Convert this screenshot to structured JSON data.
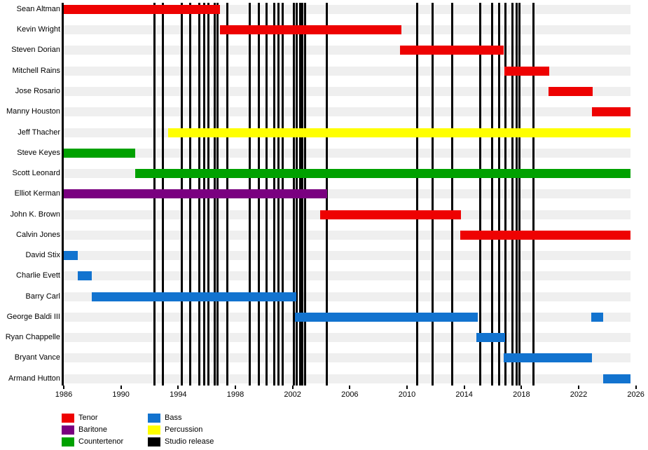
{
  "chart_data": {
    "type": "timeline",
    "x_axis": {
      "tick_years": [
        1986,
        1990,
        1994,
        1998,
        2002,
        2006,
        2010,
        2014,
        2018,
        2022,
        2026
      ],
      "domain": [
        1986,
        2025.62
      ],
      "grid": false
    },
    "roles": {
      "tenor": {
        "label": "Tenor",
        "color": "#ee0202"
      },
      "baritone": {
        "label": "Baritone",
        "color": "#7a0080"
      },
      "countertenor": {
        "label": "Countertenor",
        "color": "#00a100"
      },
      "bass": {
        "label": "Bass",
        "color": "#1273cf"
      },
      "percussion": {
        "label": "Percussion",
        "color": "#ffff00"
      },
      "studio": {
        "label": "Studio release",
        "color": "#000000"
      }
    },
    "legend_order": [
      "tenor",
      "baritone",
      "countertenor",
      "bass",
      "percussion",
      "studio"
    ],
    "legend_position": "bottom-left",
    "members": [
      {
        "name": "Sean Altman",
        "role": "tenor",
        "segments": [
          [
            1986.0,
            1996.92
          ]
        ]
      },
      {
        "name": "Kevin Wright",
        "role": "tenor",
        "segments": [
          [
            1996.92,
            2009.6
          ]
        ]
      },
      {
        "name": "Steven Dorian",
        "role": "tenor",
        "segments": [
          [
            2009.5,
            2016.75
          ]
        ]
      },
      {
        "name": "Mitchell Rains",
        "role": "tenor",
        "segments": [
          [
            2016.8,
            2019.93
          ]
        ]
      },
      {
        "name": "Jose Rosario",
        "role": "tenor",
        "segments": [
          [
            2019.9,
            2023.0
          ]
        ]
      },
      {
        "name": "Manny Houston",
        "role": "tenor",
        "segments": [
          [
            2022.95,
            2025.62
          ]
        ]
      },
      {
        "name": "Jeff Thacher",
        "role": "percussion",
        "segments": [
          [
            1993.3,
            2025.62
          ]
        ]
      },
      {
        "name": "Steve Keyes",
        "role": "countertenor",
        "segments": [
          [
            1986.0,
            1991.0
          ]
        ]
      },
      {
        "name": "Scott Leonard",
        "role": "countertenor",
        "segments": [
          [
            1991.0,
            2025.62
          ]
        ]
      },
      {
        "name": "Elliot Kerman",
        "role": "baritone",
        "segments": [
          [
            1986.0,
            2004.4
          ]
        ]
      },
      {
        "name": "John K. Brown",
        "role": "tenor",
        "segments": [
          [
            2003.93,
            2013.77
          ]
        ]
      },
      {
        "name": "Calvin Jones",
        "role": "tenor",
        "segments": [
          [
            2013.72,
            2025.62
          ]
        ]
      },
      {
        "name": "David Stix",
        "role": "bass",
        "segments": [
          [
            1986.0,
            1986.97
          ]
        ]
      },
      {
        "name": "Charlie Evett",
        "role": "bass",
        "segments": [
          [
            1986.97,
            1987.95
          ]
        ]
      },
      {
        "name": "Barry Carl",
        "role": "bass",
        "segments": [
          [
            1987.95,
            2002.25
          ]
        ]
      },
      {
        "name": "George Baldi III",
        "role": "bass",
        "segments": [
          [
            2002.15,
            2014.95
          ],
          [
            2022.88,
            2023.71
          ]
        ]
      },
      {
        "name": "Ryan Chappelle",
        "role": "bass",
        "segments": [
          [
            2014.85,
            2016.86
          ]
        ]
      },
      {
        "name": "Bryant Vance",
        "role": "bass",
        "segments": [
          [
            2016.76,
            2022.93
          ]
        ]
      },
      {
        "name": "Armand Hutton",
        "role": "bass",
        "segments": [
          [
            2023.71,
            2025.62
          ]
        ]
      }
    ],
    "studio_release_years": [
      1992.32,
      1992.91,
      1994.27,
      1994.84,
      1995.5,
      1995.84,
      1996.13,
      1996.57,
      1996.77,
      1997.45,
      1999.02,
      1999.66,
      2000.19,
      2000.73,
      2001.03,
      2001.32,
      2002.1,
      2002.3,
      2002.52,
      2002.7,
      2002.88,
      2004.4,
      2010.72,
      2011.79,
      2013.16,
      2015.12,
      2015.95,
      2016.44,
      2016.88,
      2017.37,
      2017.67,
      2017.86,
      2018.84
    ]
  }
}
